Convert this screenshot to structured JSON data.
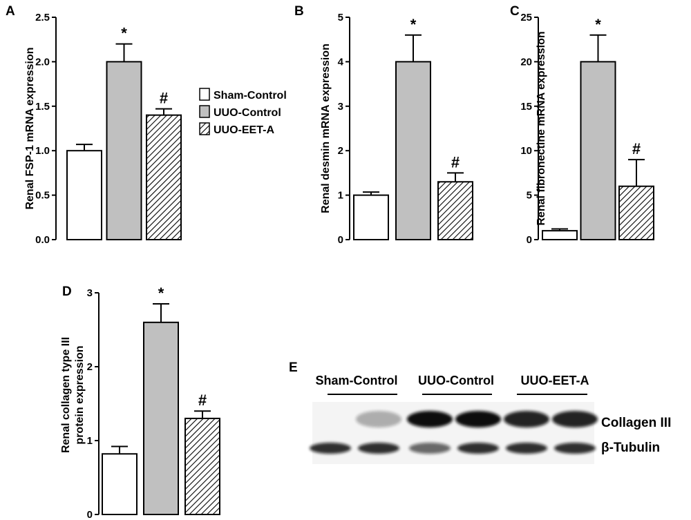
{
  "legend": [
    {
      "label": "Sham-Control",
      "fill": "white"
    },
    {
      "label": "UUO-Control",
      "fill": "#c0c0c0"
    },
    {
      "label": "UUO-EET-A",
      "fill": "hatch"
    }
  ],
  "colors": {
    "sham": "#ffffff",
    "uuo": "#c0c0c0",
    "eet": "hatch"
  },
  "chart_data": [
    {
      "panel": "A",
      "type": "bar",
      "categories": [
        "Sham-Control",
        "UUO-Control",
        "UUO-EET-A"
      ],
      "values": [
        1.0,
        2.0,
        1.4
      ],
      "errors": [
        0.07,
        0.2,
        0.07
      ],
      "marks": [
        "",
        "*",
        "#"
      ],
      "ylabel": "Renal FSP-1 mRNA expression",
      "ylim": [
        0,
        2.5
      ],
      "yticks": [
        "0.0",
        "0.5",
        "1.0",
        "1.5",
        "2.0",
        "2.5"
      ]
    },
    {
      "panel": "B",
      "type": "bar",
      "categories": [
        "Sham-Control",
        "UUO-Control",
        "UUO-EET-A"
      ],
      "values": [
        1.0,
        4.0,
        1.3
      ],
      "errors": [
        0.07,
        0.6,
        0.2
      ],
      "marks": [
        "",
        "*",
        "#"
      ],
      "ylabel": "Renal desmin mRNA expression",
      "ylim": [
        0,
        5
      ],
      "yticks": [
        "0",
        "1",
        "2",
        "3",
        "4",
        "5"
      ]
    },
    {
      "panel": "C",
      "type": "bar",
      "categories": [
        "Sham-Control",
        "UUO-Control",
        "UUO-EET-A"
      ],
      "values": [
        1.0,
        20.0,
        6.0
      ],
      "errors": [
        0.2,
        3.0,
        3.0
      ],
      "marks": [
        "",
        "*",
        "#"
      ],
      "ylabel": "Renal fibronectine mRNA expression",
      "ylim": [
        0,
        25
      ],
      "yticks": [
        "0",
        "5",
        "10",
        "15",
        "20",
        "25"
      ]
    },
    {
      "panel": "D",
      "type": "bar",
      "categories": [
        "Sham-Control",
        "UUO-Control",
        "UUO-EET-A"
      ],
      "values": [
        0.82,
        2.6,
        1.3
      ],
      "errors": [
        0.1,
        0.25,
        0.1
      ],
      "marks": [
        "",
        "*",
        "#"
      ],
      "ylabel_lines": [
        "Renal collagen type III",
        "protein expression"
      ],
      "ylim": [
        0,
        3
      ],
      "yticks": [
        "0",
        "1",
        "2",
        "3"
      ]
    }
  ],
  "blot": {
    "panel": "E",
    "groups": [
      "Sham-Control",
      "UUO-Control",
      "UUO-EET-A"
    ],
    "rows": [
      "Collagen III",
      "β-Tubulin"
    ],
    "collagen_intensity": [
      0.0,
      0.3,
      1.0,
      1.0,
      0.9,
      0.9
    ],
    "tubulin_intensity": [
      0.85,
      0.85,
      0.6,
      0.85,
      0.85,
      0.85
    ]
  }
}
